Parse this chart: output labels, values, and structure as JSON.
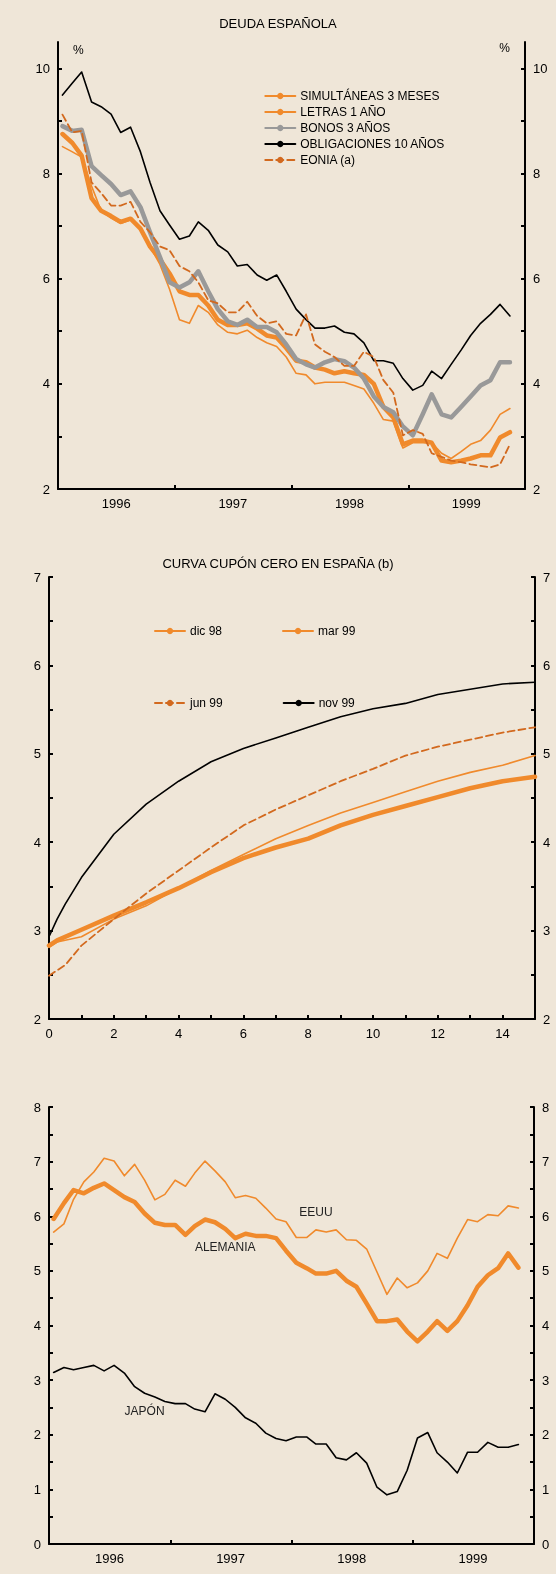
{
  "chart_data": [
    {
      "type": "line",
      "title": "DEUDA ESPAÑOLA",
      "ylabel": "%",
      "y2label": "%",
      "legend": "top right",
      "marker": "none",
      "grid": false,
      "x": [
        "1996-01-15",
        "1996-02-15",
        "1996-03-15",
        "1996-04-15",
        "1996-05-15",
        "1996-06-15",
        "1996-07-15",
        "1996-08-15",
        "1996-09-15",
        "1996-10-15",
        "1996-11-15",
        "1996-12-15",
        "1997-01-15",
        "1997-02-15",
        "1997-03-15",
        "1997-04-15",
        "1997-05-15",
        "1997-06-15",
        "1997-07-15",
        "1997-08-15",
        "1997-09-15",
        "1997-10-15",
        "1997-11-15",
        "1997-12-15",
        "1998-01-15",
        "1998-02-15",
        "1998-03-15",
        "1998-04-15",
        "1998-05-15",
        "1998-06-15",
        "1998-07-15",
        "1998-08-15",
        "1998-09-15",
        "1998-10-15",
        "1998-11-15",
        "1998-12-15",
        "1999-01-15",
        "1999-02-15",
        "1999-03-15",
        "1999-04-15",
        "1999-05-15",
        "1999-06-15",
        "1999-07-15",
        "1999-08-15",
        "1999-09-15",
        "1999-10-15",
        "1999-11-15"
      ],
      "xlim": [
        "1996-01-01",
        "2000-01-01"
      ],
      "xticks": [
        {
          "value": "1996-01-01",
          "label": null
        },
        {
          "value": "1996-07-01",
          "label": "1996"
        },
        {
          "value": "1997-01-01",
          "label": null
        },
        {
          "value": "1997-07-01",
          "label": "1997"
        },
        {
          "value": "1998-01-01",
          "label": null
        },
        {
          "value": "1998-07-01",
          "label": "1998"
        },
        {
          "value": "1999-01-01",
          "label": null
        },
        {
          "value": "1999-07-01",
          "label": "1999"
        },
        {
          "value": "2000-01-01",
          "label": null
        }
      ],
      "ylim": [
        2,
        10.5
      ],
      "yticks": [
        2,
        {
          "value": 3,
          "label": null
        },
        4,
        {
          "value": 5,
          "label": null
        },
        6,
        {
          "value": 7,
          "label": null
        },
        8,
        {
          "value": 9,
          "label": null
        },
        10
      ],
      "y2lim": [
        2,
        10.5
      ],
      "y2ticks": [
        2,
        {
          "value": 3,
          "label": null
        },
        4,
        {
          "value": 5,
          "label": null
        },
        6,
        {
          "value": 7,
          "label": null
        },
        8,
        {
          "value": 9,
          "label": null
        },
        10
      ],
      "series": [
        {
          "name": "SIMULTÁNEAS 3 MESES",
          "color": "#f08a2c",
          "line_style": "solid",
          "values": [
            8.75,
            8.58,
            8.34,
            7.53,
            7.29,
            7.19,
            7.08,
            7.14,
            6.95,
            6.61,
            6.37,
            6.1,
            5.76,
            5.69,
            5.69,
            5.49,
            5.22,
            5.12,
            5.12,
            5.15,
            5.05,
            4.92,
            4.88,
            4.68,
            4.44,
            4.41,
            4.31,
            4.27,
            4.2,
            4.24,
            4.2,
            4.17,
            4.0,
            3.56,
            3.36,
            2.85,
            2.92,
            2.92,
            2.88,
            2.54,
            2.51,
            2.54,
            2.58,
            2.64,
            2.64,
            2.98,
            3.08
          ]
        },
        {
          "name": "LETRAS 1 AÑO",
          "color": "#f08a2c",
          "line_style": "solid",
          "values": [
            8.51,
            8.41,
            8.31,
            7.76,
            7.29,
            7.15,
            7.05,
            7.12,
            6.95,
            6.61,
            6.27,
            5.8,
            5.22,
            5.15,
            5.49,
            5.36,
            5.12,
            4.98,
            4.95,
            5.02,
            4.88,
            4.78,
            4.71,
            4.51,
            4.2,
            4.17,
            4.0,
            4.03,
            4.03,
            4.03,
            3.97,
            3.9,
            3.63,
            3.32,
            3.29,
            2.78,
            2.88,
            2.88,
            2.88,
            2.68,
            2.58,
            2.71,
            2.85,
            2.92,
            3.12,
            3.42,
            3.53
          ]
        },
        {
          "name": "BONOS 3 AÑOS",
          "color": "#999999",
          "line_style": "solid",
          "values": [
            8.9,
            8.81,
            8.83,
            8.14,
            7.97,
            7.8,
            7.59,
            7.66,
            7.36,
            6.88,
            6.41,
            5.93,
            5.83,
            5.93,
            6.14,
            5.76,
            5.42,
            5.19,
            5.12,
            5.22,
            5.08,
            5.08,
            4.98,
            4.75,
            4.47,
            4.37,
            4.31,
            4.41,
            4.47,
            4.43,
            4.31,
            4.1,
            3.76,
            3.56,
            3.46,
            3.19,
            3.02,
            3.42,
            3.8,
            3.42,
            3.36,
            3.56,
            3.76,
            3.97,
            4.07,
            4.41,
            4.41
          ]
        },
        {
          "name": "OBLIGACIONES 10 AÑOS",
          "color": "#000000",
          "line_style": "solid",
          "values": [
            9.49,
            9.72,
            9.93,
            9.36,
            9.27,
            9.13,
            8.78,
            8.88,
            8.41,
            7.83,
            7.29,
            7.02,
            6.75,
            6.81,
            7.08,
            6.92,
            6.64,
            6.51,
            6.24,
            6.27,
            6.07,
            5.97,
            6.07,
            5.76,
            5.42,
            5.22,
            5.06,
            5.06,
            5.1,
            4.98,
            4.95,
            4.78,
            4.44,
            4.44,
            4.39,
            4.1,
            3.88,
            3.97,
            4.24,
            4.1,
            4.37,
            4.64,
            4.92,
            5.15,
            5.32,
            5.51,
            5.29
          ]
        },
        {
          "name": "EONIA (a)",
          "color": "#d2691e",
          "line_style": "dashed",
          "values": [
            9.12,
            8.78,
            8.81,
            7.83,
            7.63,
            7.39,
            7.39,
            7.46,
            7.08,
            6.88,
            6.61,
            6.54,
            6.24,
            6.14,
            5.93,
            5.59,
            5.53,
            5.36,
            5.36,
            5.56,
            5.29,
            5.15,
            5.19,
            4.95,
            4.92,
            5.32,
            4.75,
            4.61,
            4.51,
            4.34,
            4.34,
            4.61,
            4.51,
            4.07,
            3.83,
            3.02,
            3.12,
            3.05,
            2.68,
            2.61,
            2.54,
            2.51,
            2.47,
            2.44,
            2.41,
            2.47,
            2.85
          ]
        }
      ]
    },
    {
      "type": "line",
      "title": "CURVA CUPÓN CERO EN ESPAÑA (b)",
      "legend": "top left",
      "marker": "none",
      "grid": false,
      "xlim": [
        0,
        15
      ],
      "xticks": [
        0,
        {
          "value": 1,
          "label": null
        },
        2,
        {
          "value": 3,
          "label": null
        },
        4,
        {
          "value": 5,
          "label": null
        },
        6,
        {
          "value": 7,
          "label": null
        },
        8,
        {
          "value": 9,
          "label": null
        },
        10,
        {
          "value": 11,
          "label": null
        },
        12,
        {
          "value": 13,
          "label": null
        },
        14,
        {
          "value": 15,
          "label": null
        }
      ],
      "ylim": [
        2,
        7
      ],
      "yticks": [
        2,
        {
          "value": 2.5,
          "label": null
        },
        3,
        {
          "value": 3.5,
          "label": null
        },
        4,
        {
          "value": 4.5,
          "label": null
        },
        5,
        {
          "value": 5.5,
          "label": null
        },
        6,
        {
          "value": 6.5,
          "label": null
        },
        7
      ],
      "y2lim": [
        2,
        7
      ],
      "y2ticks": [
        2,
        {
          "value": 2.5,
          "label": null
        },
        3,
        {
          "value": 3.5,
          "label": null
        },
        4,
        {
          "value": 4.5,
          "label": null
        },
        5,
        {
          "value": 5.5,
          "label": null
        },
        6,
        {
          "value": 6.5,
          "label": null
        },
        7
      ],
      "series": [
        {
          "name": "dic 98",
          "color": "#f08a2c",
          "line_style": "solid",
          "x": [
            0,
            0.25,
            1,
            2,
            3,
            4,
            5,
            6,
            7,
            8,
            9,
            10,
            11,
            12,
            13,
            14,
            15
          ],
          "values": [
            2.83,
            2.89,
            3.01,
            3.17,
            3.32,
            3.48,
            3.66,
            3.82,
            3.94,
            4.04,
            4.19,
            4.31,
            4.41,
            4.51,
            4.61,
            4.69,
            4.74
          ]
        },
        {
          "name": "mar 99",
          "color": "#f08a2c",
          "line_style": "solid",
          "x": [
            0,
            0.25,
            1,
            2,
            3,
            4,
            5,
            6,
            7,
            8,
            9,
            10,
            11,
            12,
            13,
            14,
            15
          ],
          "values": [
            2.81,
            2.87,
            2.93,
            3.13,
            3.28,
            3.48,
            3.68,
            3.86,
            4.04,
            4.19,
            4.33,
            4.45,
            4.57,
            4.69,
            4.79,
            4.87,
            4.98
          ]
        },
        {
          "name": "jun 99",
          "color": "#d2691e",
          "line_style": "dashed",
          "x": [
            0,
            0.5,
            1,
            2,
            3,
            4,
            5,
            6,
            7,
            8,
            9,
            10,
            11,
            12,
            13,
            14,
            15
          ],
          "values": [
            2.49,
            2.61,
            2.83,
            3.13,
            3.42,
            3.68,
            3.94,
            4.19,
            4.37,
            4.53,
            4.69,
            4.83,
            4.98,
            5.08,
            5.16,
            5.24,
            5.3
          ]
        },
        {
          "name": "nov 99",
          "color": "#000000",
          "line_style": "solid",
          "x": [
            0,
            0.25,
            0.5,
            1,
            2,
            3,
            4,
            5,
            6,
            7,
            8,
            9,
            10,
            11,
            12,
            13,
            14,
            15
          ],
          "values": [
            2.93,
            3.13,
            3.3,
            3.6,
            4.09,
            4.43,
            4.69,
            4.91,
            5.06,
            5.18,
            5.3,
            5.42,
            5.51,
            5.57,
            5.67,
            5.73,
            5.79,
            5.81
          ]
        }
      ]
    },
    {
      "type": "line",
      "legend": false,
      "marker": "none",
      "grid": false,
      "x": [
        "1996-01-15",
        "1996-02-15",
        "1996-03-15",
        "1996-04-15",
        "1996-05-15",
        "1996-06-15",
        "1996-07-15",
        "1996-08-15",
        "1996-09-15",
        "1996-10-15",
        "1996-11-15",
        "1996-12-15",
        "1997-01-15",
        "1997-02-15",
        "1997-03-15",
        "1997-04-15",
        "1997-05-15",
        "1997-06-15",
        "1997-07-15",
        "1997-08-15",
        "1997-09-15",
        "1997-10-15",
        "1997-11-15",
        "1997-12-15",
        "1998-01-15",
        "1998-02-15",
        "1998-03-15",
        "1998-04-15",
        "1998-05-15",
        "1998-06-15",
        "1998-07-15",
        "1998-08-15",
        "1998-09-15",
        "1998-10-15",
        "1998-11-15",
        "1998-12-15",
        "1999-01-15",
        "1999-02-15",
        "1999-03-15",
        "1999-04-15",
        "1999-05-15",
        "1999-06-15",
        "1999-07-15",
        "1999-08-15",
        "1999-09-15",
        "1999-10-15",
        "1999-11-15"
      ],
      "xlim": [
        "1996-01-01",
        "2000-01-01"
      ],
      "xticks": [
        {
          "value": "1996-01-01",
          "label": null
        },
        {
          "value": "1996-07-01",
          "label": "1996"
        },
        {
          "value": "1997-01-01",
          "label": null
        },
        {
          "value": "1997-07-01",
          "label": "1997"
        },
        {
          "value": "1998-01-01",
          "label": null
        },
        {
          "value": "1998-07-01",
          "label": "1998"
        },
        {
          "value": "1999-01-01",
          "label": null
        },
        {
          "value": "1999-07-01",
          "label": "1999"
        },
        {
          "value": "2000-01-01",
          "label": null
        }
      ],
      "ylim": [
        0,
        8
      ],
      "yticks": [
        0,
        {
          "value": 0.5,
          "label": null
        },
        1,
        {
          "value": 1.5,
          "label": null
        },
        2,
        {
          "value": 2.5,
          "label": null
        },
        3,
        {
          "value": 3.5,
          "label": null
        },
        4,
        {
          "value": 4.5,
          "label": null
        },
        5,
        {
          "value": 5.5,
          "label": null
        },
        6,
        {
          "value": 6.5,
          "label": null
        },
        7,
        {
          "value": 7.5,
          "label": null
        },
        8
      ],
      "y2lim": [
        0,
        8
      ],
      "y2ticks": [
        0,
        {
          "value": 0.5,
          "label": null
        },
        1,
        {
          "value": 1.5,
          "label": null
        },
        2,
        {
          "value": 2.5,
          "label": null
        },
        3,
        {
          "value": 3.5,
          "label": null
        },
        4,
        {
          "value": 4.5,
          "label": null
        },
        5,
        {
          "value": 5.5,
          "label": null
        },
        6,
        {
          "value": 6.5,
          "label": null
        },
        7,
        {
          "value": 7.5,
          "label": null
        },
        8
      ],
      "series": [
        {
          "name": "ALEMANIA",
          "color": "#f08a2c",
          "line_style": "solid",
          "values": [
            5.95,
            6.24,
            6.48,
            6.42,
            6.52,
            6.6,
            6.48,
            6.35,
            6.26,
            6.05,
            5.88,
            5.84,
            5.84,
            5.66,
            5.82,
            5.94,
            5.89,
            5.77,
            5.6,
            5.68,
            5.64,
            5.64,
            5.6,
            5.37,
            5.15,
            5.05,
            4.95,
            4.95,
            5.0,
            4.82,
            4.71,
            4.4,
            4.08,
            4.08,
            4.11,
            3.89,
            3.71,
            3.89,
            4.08,
            3.9,
            4.08,
            4.37,
            4.71,
            4.92,
            5.05,
            5.32,
            5.06
          ]
        },
        {
          "name": "EEUU",
          "color": "#f08a2c",
          "line_style": "solid",
          "values": [
            5.71,
            5.86,
            6.31,
            6.63,
            6.81,
            7.06,
            7.01,
            6.74,
            6.95,
            6.66,
            6.3,
            6.4,
            6.66,
            6.55,
            6.79,
            7.01,
            6.83,
            6.63,
            6.34,
            6.38,
            6.33,
            6.15,
            5.95,
            5.9,
            5.61,
            5.61,
            5.75,
            5.71,
            5.75,
            5.57,
            5.56,
            5.4,
            4.98,
            4.57,
            4.87,
            4.69,
            4.78,
            5.0,
            5.32,
            5.23,
            5.6,
            5.94,
            5.9,
            6.03,
            6.01,
            6.19,
            6.15
          ]
        },
        {
          "name": "JAPÓN",
          "color": "#000000",
          "line_style": "solid",
          "values": [
            3.14,
            3.23,
            3.19,
            3.23,
            3.27,
            3.17,
            3.27,
            3.13,
            2.88,
            2.76,
            2.69,
            2.61,
            2.57,
            2.57,
            2.47,
            2.42,
            2.75,
            2.65,
            2.5,
            2.31,
            2.21,
            2.03,
            1.93,
            1.89,
            1.96,
            1.96,
            1.83,
            1.83,
            1.58,
            1.54,
            1.67,
            1.48,
            1.04,
            0.9,
            0.96,
            1.35,
            1.94,
            2.04,
            1.67,
            1.5,
            1.3,
            1.68,
            1.68,
            1.86,
            1.77,
            1.77,
            1.82
          ]
        }
      ]
    }
  ]
}
